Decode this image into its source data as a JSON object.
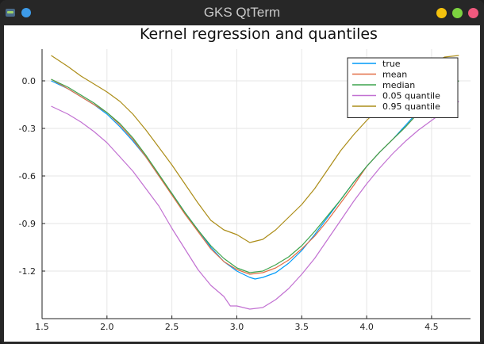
{
  "window": {
    "title": "GKS QtTerm",
    "icon": "terminal-icon",
    "buttons": [
      "minimize",
      "maximize",
      "close"
    ],
    "colors": {
      "minimize": "#f4c20d",
      "maximize": "#7dd340",
      "close": "#f0597e"
    }
  },
  "chart_data": {
    "type": "line",
    "title": "Kernel regression and quantiles",
    "xlabel": "",
    "ylabel": "",
    "xlim": [
      1.5,
      4.8
    ],
    "ylim": [
      -1.5,
      0.2
    ],
    "xticks": [
      "1.5",
      "2.0",
      "2.5",
      "3.0",
      "3.5",
      "4.0",
      "4.5"
    ],
    "xtick_values": [
      1.5,
      2.0,
      2.5,
      3.0,
      3.5,
      4.0,
      4.5
    ],
    "yticks": [
      "0.0",
      "-0.3",
      "-0.6",
      "-0.9",
      "-1.2"
    ],
    "ytick_values": [
      0.0,
      -0.3,
      -0.6,
      -0.9,
      -1.2
    ],
    "grid": true,
    "legend_position": "top-right",
    "series": [
      {
        "name": "true",
        "color": "#009af9",
        "x": [
          1.57,
          1.7,
          1.8,
          1.9,
          2.0,
          2.1,
          2.2,
          2.3,
          2.4,
          2.5,
          2.6,
          2.7,
          2.8,
          2.9,
          3.0,
          3.1,
          3.14,
          3.2,
          3.3,
          3.4,
          3.5,
          3.6,
          3.7,
          3.8,
          3.9,
          4.0,
          4.1,
          4.2,
          4.3,
          4.4,
          4.5,
          4.6,
          4.71
        ],
        "y": [
          0.0,
          -0.05,
          -0.1,
          -0.15,
          -0.21,
          -0.29,
          -0.38,
          -0.48,
          -0.6,
          -0.71,
          -0.83,
          -0.94,
          -1.05,
          -1.14,
          -1.2,
          -1.24,
          -1.25,
          -1.24,
          -1.21,
          -1.15,
          -1.07,
          -0.97,
          -0.86,
          -0.75,
          -0.64,
          -0.54,
          -0.45,
          -0.37,
          -0.28,
          -0.19,
          -0.1,
          -0.04,
          0.0
        ]
      },
      {
        "name": "mean",
        "color": "#e26f46",
        "x": [
          1.57,
          1.7,
          1.8,
          1.9,
          2.0,
          2.1,
          2.2,
          2.3,
          2.4,
          2.5,
          2.6,
          2.7,
          2.8,
          2.9,
          3.0,
          3.1,
          3.2,
          3.3,
          3.4,
          3.5,
          3.6,
          3.7,
          3.8,
          3.9,
          4.0,
          4.1,
          4.2,
          4.3,
          4.4,
          4.5,
          4.6,
          4.71
        ],
        "y": [
          0.01,
          -0.05,
          -0.1,
          -0.15,
          -0.2,
          -0.28,
          -0.37,
          -0.48,
          -0.6,
          -0.72,
          -0.84,
          -0.95,
          -1.06,
          -1.14,
          -1.19,
          -1.22,
          -1.21,
          -1.18,
          -1.13,
          -1.06,
          -0.98,
          -0.88,
          -0.77,
          -0.66,
          -0.54,
          -0.45,
          -0.37,
          -0.29,
          -0.2,
          -0.11,
          -0.04,
          0.0
        ]
      },
      {
        "name": "median",
        "color": "#3da44d",
        "x": [
          1.57,
          1.7,
          1.8,
          1.9,
          2.0,
          2.1,
          2.2,
          2.3,
          2.4,
          2.5,
          2.6,
          2.7,
          2.8,
          2.9,
          3.0,
          3.1,
          3.2,
          3.3,
          3.4,
          3.5,
          3.6,
          3.7,
          3.8,
          3.9,
          4.0,
          4.1,
          4.2,
          4.3,
          4.4,
          4.5,
          4.6,
          4.71
        ],
        "y": [
          0.01,
          -0.04,
          -0.09,
          -0.14,
          -0.2,
          -0.27,
          -0.36,
          -0.47,
          -0.59,
          -0.71,
          -0.83,
          -0.94,
          -1.04,
          -1.12,
          -1.18,
          -1.21,
          -1.2,
          -1.16,
          -1.11,
          -1.04,
          -0.95,
          -0.85,
          -0.75,
          -0.64,
          -0.54,
          -0.45,
          -0.37,
          -0.29,
          -0.2,
          -0.12,
          -0.05,
          0.0
        ]
      },
      {
        "name": "0.05 quantile",
        "color": "#c271d2",
        "x": [
          1.57,
          1.7,
          1.8,
          1.9,
          2.0,
          2.1,
          2.2,
          2.3,
          2.4,
          2.5,
          2.6,
          2.7,
          2.8,
          2.9,
          2.95,
          3.0,
          3.1,
          3.2,
          3.3,
          3.4,
          3.5,
          3.6,
          3.7,
          3.8,
          3.9,
          4.0,
          4.1,
          4.2,
          4.3,
          4.4,
          4.5,
          4.6,
          4.71
        ],
        "y": [
          -0.16,
          -0.21,
          -0.26,
          -0.32,
          -0.39,
          -0.48,
          -0.57,
          -0.68,
          -0.79,
          -0.93,
          -1.06,
          -1.19,
          -1.29,
          -1.36,
          -1.42,
          -1.42,
          -1.44,
          -1.43,
          -1.38,
          -1.31,
          -1.22,
          -1.12,
          -1.0,
          -0.88,
          -0.76,
          -0.65,
          -0.55,
          -0.46,
          -0.38,
          -0.31,
          -0.25,
          -0.19,
          -0.13
        ]
      },
      {
        "name": "0.95 quantile",
        "color": "#ac8d18",
        "x": [
          1.57,
          1.7,
          1.8,
          1.9,
          2.0,
          2.1,
          2.2,
          2.3,
          2.4,
          2.5,
          2.6,
          2.7,
          2.8,
          2.9,
          3.0,
          3.1,
          3.2,
          3.3,
          3.4,
          3.5,
          3.6,
          3.7,
          3.8,
          3.9,
          4.0,
          4.1,
          4.2,
          4.3,
          4.4,
          4.5,
          4.6,
          4.71
        ],
        "y": [
          0.16,
          0.09,
          0.03,
          -0.02,
          -0.07,
          -0.13,
          -0.21,
          -0.31,
          -0.42,
          -0.53,
          -0.65,
          -0.77,
          -0.88,
          -0.94,
          -0.97,
          -1.02,
          -1.0,
          -0.94,
          -0.86,
          -0.78,
          -0.68,
          -0.56,
          -0.44,
          -0.34,
          -0.25,
          -0.17,
          -0.09,
          -0.02,
          0.06,
          0.11,
          0.15,
          0.16
        ]
      }
    ]
  }
}
